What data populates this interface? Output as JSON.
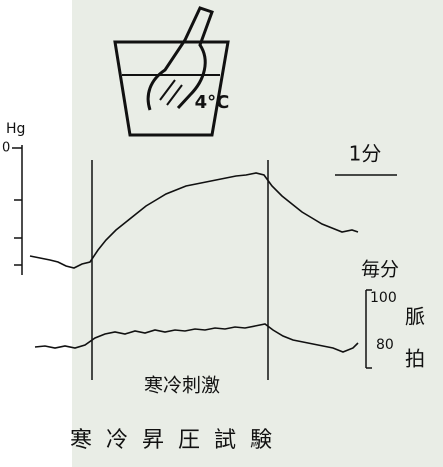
{
  "figure": {
    "title": "寒冷昇圧試験",
    "stimulus_label": "寒冷刺激",
    "water_temp": "4°C",
    "bp_axis": {
      "unit": "Hg",
      "top_label": "0"
    },
    "time_scale": "1分",
    "pulse_axis": {
      "unit": "毎分",
      "ticks": [
        "100",
        "80"
      ],
      "label_top": "脈",
      "label_bottom": "拍"
    }
  }
}
